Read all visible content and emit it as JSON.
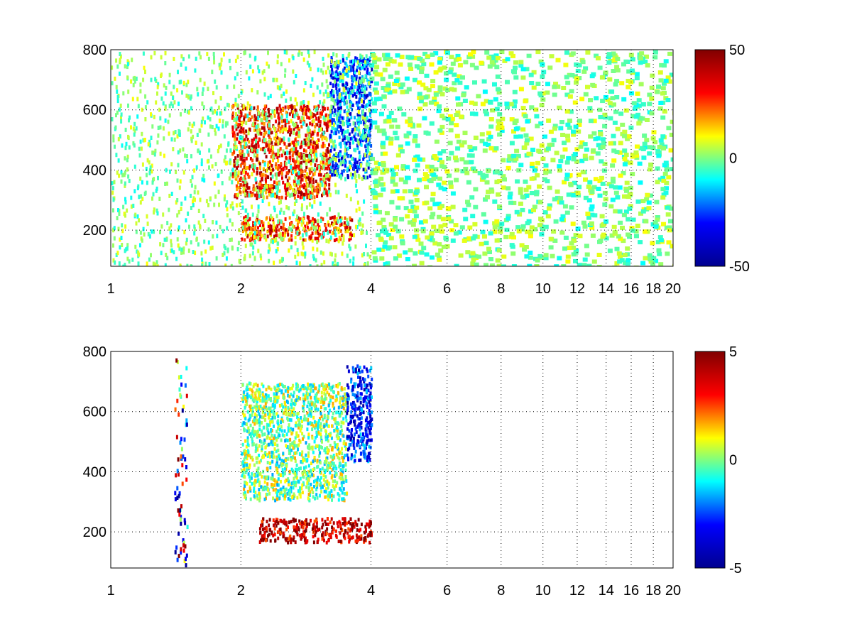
{
  "colormap": {
    "name": "jet",
    "stops": [
      "#00008f",
      "#0000ff",
      "#00ffff",
      "#ffff00",
      "#ff0000",
      "#800000"
    ]
  },
  "chart_data": [
    {
      "type": "heatmap",
      "title": "",
      "xlabel": "",
      "ylabel": "",
      "xlim": [
        1,
        20
      ],
      "ylim": [
        80,
        800
      ],
      "x_scale": "log",
      "grid": true,
      "grid_style": "dotted",
      "xticks": [
        1,
        2,
        4,
        6,
        8,
        10,
        12,
        14,
        16,
        18,
        20
      ],
      "xtick_labels": [
        "1",
        "2",
        "4",
        "6",
        "8",
        "10",
        "12",
        "14",
        "16",
        "18",
        "20"
      ],
      "yticks": [
        200,
        400,
        600,
        800
      ],
      "ytick_labels": [
        "200",
        "400",
        "600",
        "800"
      ],
      "colorbar": {
        "clim": [
          -50,
          50
        ],
        "ticks": [
          50,
          0,
          -50
        ],
        "tick_labels": [
          "50",
          "0",
          "-50"
        ],
        "placement": "right"
      },
      "features": [
        {
          "kind": "band",
          "x_range": [
            1.9,
            3.2
          ],
          "y_range": [
            310,
            620
          ],
          "value": 30
        },
        {
          "kind": "band",
          "x_range": [
            3.2,
            4.0
          ],
          "y_range": [
            380,
            780
          ],
          "value": -25
        },
        {
          "kind": "band",
          "x_range": [
            2.0,
            3.6
          ],
          "y_range": [
            170,
            250
          ],
          "value": 25
        },
        {
          "kind": "scatter",
          "x_range": [
            1.0,
            20.0
          ],
          "y_range": [
            80,
            800
          ],
          "value_range": [
            -10,
            10
          ]
        }
      ]
    },
    {
      "type": "heatmap",
      "title": "",
      "xlabel": "",
      "ylabel": "",
      "xlim": [
        1,
        20
      ],
      "ylim": [
        80,
        800
      ],
      "x_scale": "log",
      "grid": true,
      "grid_style": "dotted",
      "xticks": [
        1,
        2,
        4,
        6,
        8,
        10,
        12,
        14,
        16,
        18,
        20
      ],
      "xtick_labels": [
        "1",
        "2",
        "4",
        "6",
        "8",
        "10",
        "12",
        "14",
        "16",
        "18",
        "20"
      ],
      "yticks": [
        200,
        400,
        600,
        800
      ],
      "ytick_labels": [
        "200",
        "400",
        "600",
        "800"
      ],
      "colorbar": {
        "clim": [
          -5,
          5
        ],
        "ticks": [
          5,
          0,
          -5
        ],
        "tick_labels": [
          "5",
          "0",
          "-5"
        ],
        "placement": "right"
      },
      "features": [
        {
          "kind": "band",
          "x_range": [
            2.0,
            3.5
          ],
          "y_range": [
            310,
            700
          ],
          "value": 0
        },
        {
          "kind": "band",
          "x_range": [
            3.5,
            4.0
          ],
          "y_range": [
            440,
            760
          ],
          "value": -3
        },
        {
          "kind": "band",
          "x_range": [
            2.2,
            4.0
          ],
          "y_range": [
            170,
            250
          ],
          "value": 4
        },
        {
          "kind": "scatter",
          "x_range": [
            1.4,
            1.5
          ],
          "y_range": [
            90,
            780
          ],
          "value_range": [
            -5,
            5
          ]
        }
      ]
    }
  ]
}
